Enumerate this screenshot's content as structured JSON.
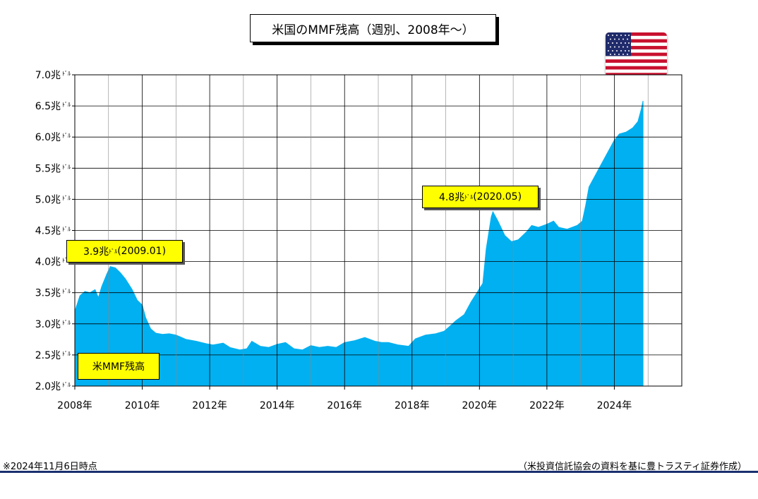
{
  "title": "米国のMMF残高（週別、2008年～）",
  "flag_icon": "us-flag-icon",
  "callouts": [
    {
      "value": "3.9兆",
      "unit": "ﾄﾞﾙ",
      "date": "(2009.01)"
    },
    {
      "value": "4.8兆",
      "unit": "ﾄﾞﾙ",
      "date": "(2020.05)"
    }
  ],
  "legend_label": "米MMF残高",
  "footnote_left": "※2024年11月6日時点",
  "footnote_right": "（米投資信託協会の資料を基に豊トラスティ証券作成）",
  "colors": {
    "area": "#00b0f0",
    "callout": "#ffff00",
    "grid": "#000000",
    "bottom_rule": "#1a2f6e"
  },
  "chart_data": {
    "type": "area",
    "title": "米国のMMF残高（週別、2008年～）",
    "xlabel": "",
    "ylabel": "",
    "y_unit": "兆ﾄﾞﾙ",
    "ylim": [
      2.0,
      7.0
    ],
    "y_ticks": [
      2.0,
      2.5,
      3.0,
      3.5,
      4.0,
      4.5,
      5.0,
      5.5,
      6.0,
      6.5,
      7.0
    ],
    "y_tick_labels": [
      "2.0兆ﾄﾞﾙ",
      "2.5兆ﾄﾞﾙ",
      "3.0兆ﾄﾞﾙ",
      "3.5兆ﾄﾞﾙ",
      "4.0兆ﾄﾞﾙ",
      "4.5兆ﾄﾞﾙ",
      "5.0兆ﾄﾞﾙ",
      "5.5兆ﾄﾞﾙ",
      "6.0兆ﾄﾞﾙ",
      "6.5兆ﾄﾞﾙ",
      "7.0兆ﾄﾞﾙ"
    ],
    "xlim": [
      2008.0,
      2026.0
    ],
    "x_ticks": [
      2008,
      2010,
      2012,
      2014,
      2016,
      2018,
      2020,
      2022,
      2024
    ],
    "x_tick_labels": [
      "2008年",
      "2010年",
      "2012年",
      "2014年",
      "2016年",
      "2018年",
      "2020年",
      "2022年",
      "2024年"
    ],
    "grid": true,
    "series": [
      {
        "name": "米MMF残高",
        "points": [
          [
            2008.0,
            3.2
          ],
          [
            2008.15,
            3.45
          ],
          [
            2008.3,
            3.52
          ],
          [
            2008.45,
            3.5
          ],
          [
            2008.6,
            3.55
          ],
          [
            2008.7,
            3.42
          ],
          [
            2008.8,
            3.6
          ],
          [
            2008.95,
            3.8
          ],
          [
            2009.05,
            3.92
          ],
          [
            2009.2,
            3.9
          ],
          [
            2009.35,
            3.82
          ],
          [
            2009.5,
            3.72
          ],
          [
            2009.7,
            3.55
          ],
          [
            2009.85,
            3.38
          ],
          [
            2010.0,
            3.3
          ],
          [
            2010.1,
            3.1
          ],
          [
            2010.25,
            2.92
          ],
          [
            2010.4,
            2.85
          ],
          [
            2010.6,
            2.83
          ],
          [
            2010.8,
            2.84
          ],
          [
            2011.0,
            2.82
          ],
          [
            2011.3,
            2.75
          ],
          [
            2011.6,
            2.72
          ],
          [
            2011.9,
            2.68
          ],
          [
            2012.1,
            2.66
          ],
          [
            2012.4,
            2.69
          ],
          [
            2012.6,
            2.62
          ],
          [
            2012.9,
            2.58
          ],
          [
            2013.1,
            2.6
          ],
          [
            2013.25,
            2.72
          ],
          [
            2013.5,
            2.64
          ],
          [
            2013.75,
            2.62
          ],
          [
            2014.0,
            2.67
          ],
          [
            2014.25,
            2.7
          ],
          [
            2014.5,
            2.6
          ],
          [
            2014.75,
            2.58
          ],
          [
            2015.0,
            2.65
          ],
          [
            2015.25,
            2.62
          ],
          [
            2015.5,
            2.64
          ],
          [
            2015.75,
            2.62
          ],
          [
            2016.0,
            2.7
          ],
          [
            2016.3,
            2.73
          ],
          [
            2016.6,
            2.78
          ],
          [
            2016.9,
            2.72
          ],
          [
            2017.1,
            2.7
          ],
          [
            2017.3,
            2.7
          ],
          [
            2017.6,
            2.66
          ],
          [
            2017.9,
            2.64
          ],
          [
            2018.1,
            2.76
          ],
          [
            2018.4,
            2.82
          ],
          [
            2018.7,
            2.84
          ],
          [
            2018.95,
            2.88
          ],
          [
            2019.1,
            2.95
          ],
          [
            2019.3,
            3.05
          ],
          [
            2019.55,
            3.15
          ],
          [
            2019.75,
            3.35
          ],
          [
            2019.95,
            3.52
          ],
          [
            2020.1,
            3.65
          ],
          [
            2020.2,
            4.2
          ],
          [
            2020.35,
            4.72
          ],
          [
            2020.4,
            4.8
          ],
          [
            2020.55,
            4.65
          ],
          [
            2020.75,
            4.42
          ],
          [
            2020.95,
            4.32
          ],
          [
            2021.15,
            4.35
          ],
          [
            2021.4,
            4.48
          ],
          [
            2021.55,
            4.58
          ],
          [
            2021.75,
            4.55
          ],
          [
            2022.0,
            4.6
          ],
          [
            2022.2,
            4.65
          ],
          [
            2022.35,
            4.55
          ],
          [
            2022.6,
            4.52
          ],
          [
            2022.9,
            4.58
          ],
          [
            2023.05,
            4.65
          ],
          [
            2023.15,
            4.9
          ],
          [
            2023.25,
            5.2
          ],
          [
            2023.4,
            5.35
          ],
          [
            2023.6,
            5.55
          ],
          [
            2023.8,
            5.75
          ],
          [
            2024.0,
            5.95
          ],
          [
            2024.15,
            6.05
          ],
          [
            2024.35,
            6.08
          ],
          [
            2024.55,
            6.15
          ],
          [
            2024.7,
            6.25
          ],
          [
            2024.8,
            6.45
          ],
          [
            2024.85,
            6.58
          ]
        ]
      }
    ]
  }
}
